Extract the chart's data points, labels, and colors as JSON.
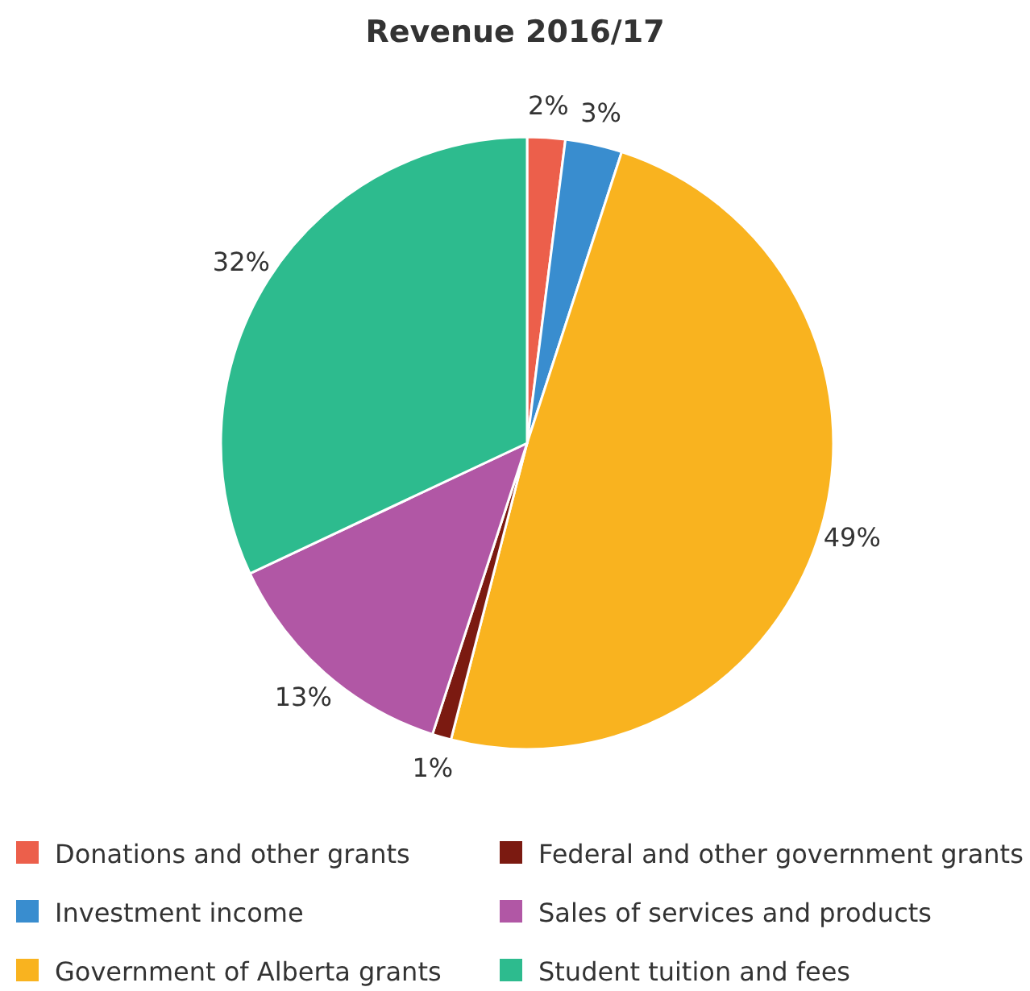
{
  "chart_data": {
    "type": "pie",
    "title": "Revenue 2016/17",
    "categories": [
      "Donations and other grants",
      "Investment income",
      "Government of Alberta grants",
      "Federal and other government grants",
      "Sales of services and products",
      "Student tuition and fees"
    ],
    "values": [
      2,
      3,
      49,
      1,
      13,
      32
    ],
    "colors": [
      "#ec5f4b",
      "#398dcf",
      "#f9b31f",
      "#7b1a11",
      "#b157a5",
      "#2dbb8e"
    ],
    "value_labels": [
      "2%",
      "3%",
      "49%",
      "1%",
      "13%",
      "32%"
    ],
    "legend": "bottom"
  }
}
